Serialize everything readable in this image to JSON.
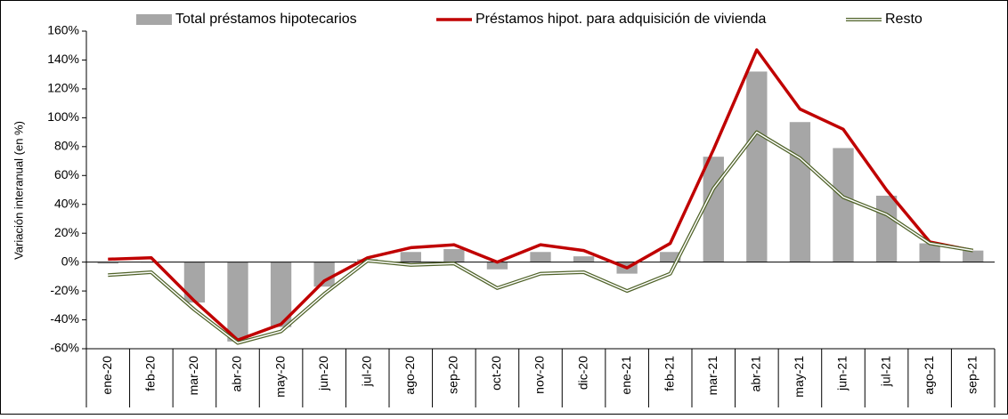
{
  "chart_data": {
    "type": "bar-line",
    "y_label": "Variación interanual (en %)",
    "categories": [
      "ene-20",
      "feb-20",
      "mar-20",
      "abr-20",
      "may-20",
      "jun-20",
      "jul-20",
      "ago-20",
      "sep-20",
      "oct-20",
      "nov-20",
      "dic-20",
      "ene-21",
      "feb-21",
      "mar-21",
      "abr-21",
      "may-21",
      "jun-21",
      "jul-21",
      "ago-21",
      "sep-21"
    ],
    "series": [
      {
        "name": "Total préstamos hipotecarios",
        "type": "bar",
        "color": "#a6a6a6",
        "values": [
          -1,
          0,
          -28,
          -55,
          -45,
          -17,
          2,
          7,
          9,
          -5,
          7,
          4,
          -8,
          7,
          73,
          132,
          97,
          79,
          46,
          13,
          8
        ]
      },
      {
        "name": "Préstamos hipot. para adquisición de vivienda",
        "type": "line",
        "color": "#c00000",
        "values": [
          2,
          3,
          -27,
          -54,
          -43,
          -13,
          3,
          10,
          12,
          0,
          12,
          8,
          -4,
          13,
          78,
          147,
          106,
          92,
          50,
          14,
          8
        ]
      },
      {
        "name": "Resto",
        "type": "double-line",
        "color": "#4f6228",
        "values": [
          -9,
          -7,
          -33,
          -56,
          -48,
          -22,
          1,
          -2,
          -1,
          -18,
          -8,
          -7,
          -20,
          -8,
          51,
          90,
          72,
          45,
          33,
          13,
          8
        ]
      }
    ],
    "ylim": [
      -60,
      160
    ],
    "yticks": [
      {
        "value": -60,
        "label": "-60%"
      },
      {
        "value": -40,
        "label": "-40%"
      },
      {
        "value": -20,
        "label": "-20%"
      },
      {
        "value": 0,
        "label": "0%"
      },
      {
        "value": 20,
        "label": "20%"
      },
      {
        "value": 40,
        "label": "40%"
      },
      {
        "value": 60,
        "label": "60%"
      },
      {
        "value": 80,
        "label": "80%"
      },
      {
        "value": 100,
        "label": "100%"
      },
      {
        "value": 120,
        "label": "120%"
      },
      {
        "value": 140,
        "label": "140%"
      },
      {
        "value": 160,
        "label": "160%"
      }
    ],
    "grid": false,
    "legend": "top"
  }
}
